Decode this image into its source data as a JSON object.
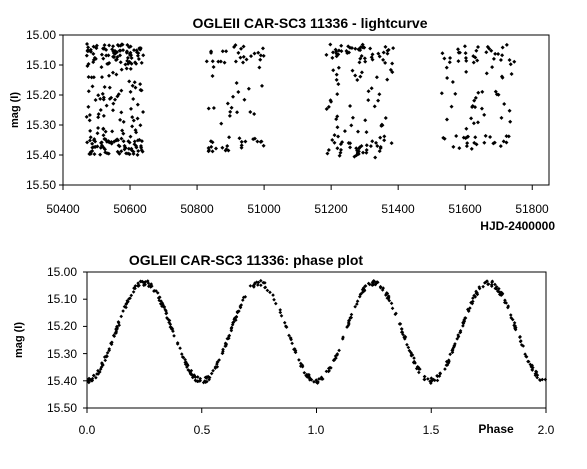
{
  "chart_data": [
    {
      "type": "scatter",
      "title": "OGLEII CAR-SC3 11336 - lightcurve",
      "xlabel": "HJD-2400000",
      "ylabel": "mag (I)",
      "xlim": [
        50400,
        51850
      ],
      "ylim": [
        15.5,
        15.0
      ],
      "y_axis_inverted": true,
      "x_ticks": [
        "50400",
        "50600",
        "50800",
        "51000",
        "51200",
        "51400",
        "51600",
        "51800"
      ],
      "y_ticks": [
        "15.00",
        "15.10",
        "15.20",
        "15.30",
        "15.40",
        "15.50"
      ],
      "grid": false,
      "legend": "none",
      "marker": "diamond",
      "marker_color": "#000000",
      "observing_seasons": [
        {
          "x_range": [
            50470,
            50640
          ],
          "y_range": [
            15.03,
            15.4
          ],
          "approx_points": 230
        },
        {
          "x_range": [
            50825,
            51000
          ],
          "y_range": [
            15.03,
            15.39
          ],
          "approx_points": 70
        },
        {
          "x_range": [
            51185,
            51385
          ],
          "y_range": [
            15.03,
            15.41
          ],
          "approx_points": 130
        },
        {
          "x_range": [
            51530,
            51750
          ],
          "y_range": [
            15.03,
            15.38
          ],
          "approx_points": 90
        }
      ]
    },
    {
      "type": "scatter",
      "title": "OGLEII CAR-SC3 11336: phase plot",
      "xlabel": "Phase",
      "ylabel": "mag (I)",
      "xlim": [
        0.0,
        2.0
      ],
      "ylim": [
        15.5,
        15.0
      ],
      "y_axis_inverted": true,
      "x_ticks": [
        "0.0",
        "0.5",
        "1.0",
        "1.5",
        "2.0"
      ],
      "y_ticks": [
        "15.00",
        "15.10",
        "15.20",
        "15.30",
        "15.40",
        "15.50"
      ],
      "grid": false,
      "legend": "none",
      "marker": "diamond",
      "marker_color": "#000000",
      "curve": {
        "maxima_phase": [
          0.25,
          0.75,
          1.25,
          1.75
        ],
        "minima_phase": [
          0.0,
          0.5,
          1.0,
          1.5,
          2.0
        ],
        "max_mag": 15.04,
        "min_mag": 15.4
      },
      "approx_points": 520
    }
  ]
}
